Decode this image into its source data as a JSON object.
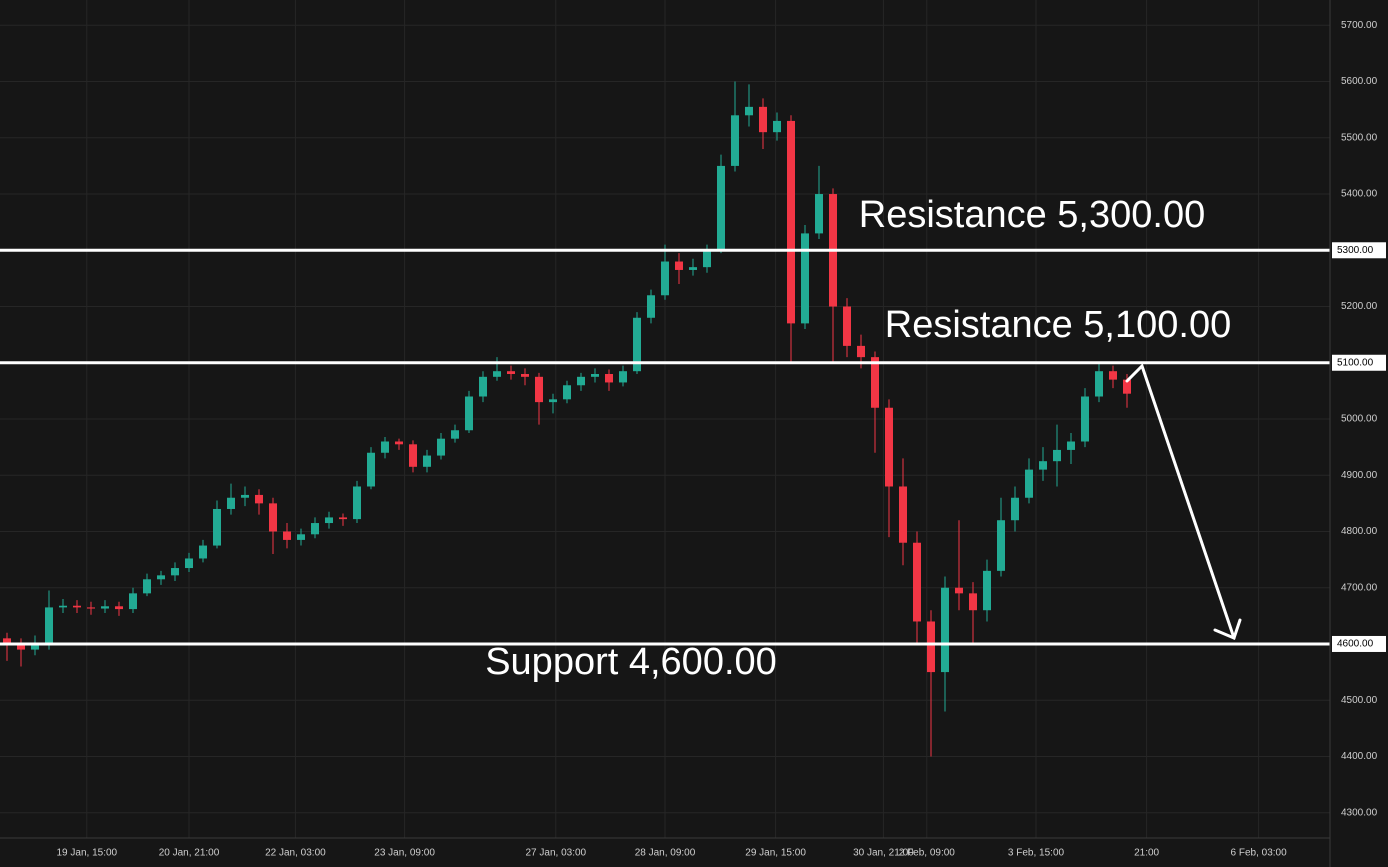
{
  "chart_data": {
    "type": "candlestick",
    "up_color": "#22ab94",
    "down_color": "#f23645",
    "xlim": [
      0,
      95
    ],
    "xticks": [
      {
        "value": 6.2,
        "label": "19 Jan, 15:00"
      },
      {
        "value": 13.5,
        "label": "20 Jan, 21:00"
      },
      {
        "value": 21.1,
        "label": "22 Jan, 03:00"
      },
      {
        "value": 28.9,
        "label": "23 Jan, 09:00"
      },
      {
        "value": 39.7,
        "label": "27 Jan, 03:00"
      },
      {
        "value": 47.5,
        "label": "28 Jan, 09:00"
      },
      {
        "value": 55.4,
        "label": "29 Jan, 15:00"
      },
      {
        "value": 63.1,
        "label": "30 Jan, 21:00"
      },
      {
        "value": 66.2,
        "label": "2 Feb, 09:00"
      },
      {
        "value": 74,
        "label": "3 Feb, 15:00"
      },
      {
        "value": 81.9,
        "label": "21:00"
      },
      {
        "value": 89.9,
        "label": "6 Feb, 03:00"
      }
    ],
    "ylim": [
      4255,
      5745
    ],
    "yticks": [
      {
        "value": 4300,
        "label": "4300.00"
      },
      {
        "value": 4400,
        "label": "4400.00"
      },
      {
        "value": 4500,
        "label": "4500.00"
      },
      {
        "value": 4600,
        "label": "4600.00"
      },
      {
        "value": 4700,
        "label": "4700.00"
      },
      {
        "value": 4800,
        "label": "4800.00"
      },
      {
        "value": 4900,
        "label": "4900.00"
      },
      {
        "value": 5000,
        "label": "5000.00"
      },
      {
        "value": 5100,
        "label": "5100.00"
      },
      {
        "value": 5200,
        "label": "5200.00"
      },
      {
        "value": 5300,
        "label": "5300.00"
      },
      {
        "value": 5400,
        "label": "5400.00"
      },
      {
        "value": 5500,
        "label": "5500.00"
      },
      {
        "value": 5600,
        "label": "5600.00"
      },
      {
        "value": 5700,
        "label": "5700.00"
      }
    ],
    "grid": true,
    "levels": [
      {
        "value": 5300,
        "label": "Resistance 5,300.00",
        "axis_label": "5300.00"
      },
      {
        "value": 5100,
        "label": "Resistance 5,100.00",
        "axis_label": "5100.00"
      },
      {
        "value": 4600,
        "label": "Support 4,600.00",
        "axis_label": "4600.00"
      }
    ],
    "open": [
      4610,
      4600,
      4590,
      4600,
      4665,
      4668,
      4665,
      4663,
      4667,
      4662,
      4690,
      4715,
      4722,
      4735,
      4752,
      4775,
      4840,
      4860,
      4865,
      4850,
      4800,
      4785,
      4795,
      4815,
      4825,
      4822,
      4880,
      4940,
      4960,
      4955,
      4915,
      4935,
      4965,
      4980,
      5040,
      5075,
      5085,
      5080,
      5075,
      5030,
      5035,
      5060,
      5075,
      5080,
      5065,
      5085,
      5180,
      5220,
      5280,
      5265,
      5270,
      5300,
      5450,
      5540,
      5555,
      5510,
      5530,
      5170,
      5330,
      5400,
      5200,
      5130,
      5110,
      5020,
      4880,
      4780,
      4640,
      4550,
      4700,
      4690,
      4660,
      4730,
      4820,
      4860,
      4910,
      4925,
      4945,
      4960,
      5040,
      5085,
      5070
    ],
    "high": [
      4620,
      4610,
      4615,
      4695,
      4680,
      4678,
      4675,
      4678,
      4675,
      4700,
      4725,
      4730,
      4745,
      4762,
      4785,
      4855,
      4885,
      4880,
      4875,
      4860,
      4815,
      4805,
      4825,
      4835,
      4832,
      4890,
      4950,
      4968,
      4965,
      4962,
      4945,
      4975,
      4990,
      5050,
      5085,
      5110,
      5095,
      5090,
      5082,
      5045,
      5068,
      5082,
      5090,
      5088,
      5095,
      5190,
      5230,
      5310,
      5295,
      5285,
      5310,
      5470,
      5600,
      5595,
      5570,
      5545,
      5540,
      5345,
      5450,
      5410,
      5215,
      5150,
      5120,
      5035,
      4930,
      4800,
      4660,
      4720,
      4820,
      4710,
      4750,
      4860,
      4880,
      4930,
      4950,
      4990,
      4975,
      5055,
      5100,
      5095,
      5080
    ],
    "low": [
      4570,
      4560,
      4580,
      4590,
      4655,
      4655,
      4652,
      4655,
      4650,
      4655,
      4685,
      4705,
      4712,
      4728,
      4745,
      4770,
      4830,
      4845,
      4830,
      4760,
      4770,
      4775,
      4788,
      4805,
      4810,
      4815,
      4875,
      4930,
      4945,
      4905,
      4905,
      4928,
      4958,
      4975,
      5030,
      5068,
      5070,
      5060,
      4990,
      5010,
      5028,
      5050,
      5065,
      5050,
      5058,
      5080,
      5170,
      5212,
      5240,
      5255,
      5260,
      5295,
      5440,
      5520,
      5480,
      5495,
      5100,
      5160,
      5320,
      5100,
      5110,
      5090,
      4940,
      4790,
      4740,
      4600,
      4400,
      4480,
      4660,
      4600,
      4640,
      4720,
      4800,
      4850,
      4890,
      4880,
      4920,
      4950,
      5030,
      5055,
      5020
    ],
    "close": [
      4600,
      4590,
      4600,
      4665,
      4668,
      4665,
      4663,
      4667,
      4662,
      4690,
      4715,
      4722,
      4735,
      4752,
      4775,
      4840,
      4860,
      4865,
      4850,
      4800,
      4785,
      4795,
      4815,
      4825,
      4822,
      4880,
      4940,
      4960,
      4955,
      4915,
      4935,
      4965,
      4980,
      5040,
      5075,
      5085,
      5080,
      5075,
      5030,
      5035,
      5060,
      5075,
      5080,
      5065,
      5085,
      5180,
      5220,
      5280,
      5265,
      5270,
      5300,
      5450,
      5540,
      5555,
      5510,
      5530,
      5170,
      5330,
      5400,
      5200,
      5130,
      5110,
      5020,
      4880,
      4780,
      4640,
      4550,
      4700,
      4690,
      4660,
      4730,
      4820,
      4860,
      4910,
      4925,
      4945,
      4960,
      5040,
      5085,
      5070,
      5045
    ]
  }
}
